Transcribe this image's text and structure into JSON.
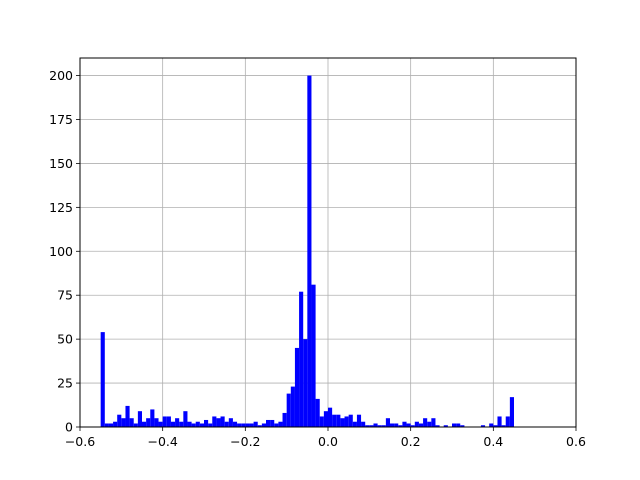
{
  "chart_data": {
    "type": "bar",
    "title": "",
    "xlabel": "",
    "ylabel": "",
    "xlim": [
      -0.6,
      0.6
    ],
    "ylim": [
      0,
      210
    ],
    "grid": true,
    "bar_color": "#0000ff",
    "x_ticks": [
      {
        "value": -0.6,
        "label": "−0.6"
      },
      {
        "value": -0.4,
        "label": "−0.4"
      },
      {
        "value": -0.2,
        "label": "−0.2"
      },
      {
        "value": 0.0,
        "label": "0.0"
      },
      {
        "value": 0.2,
        "label": "0.2"
      },
      {
        "value": 0.4,
        "label": "0.4"
      },
      {
        "value": 0.6,
        "label": "0.6"
      }
    ],
    "y_ticks": [
      {
        "value": 0,
        "label": "0"
      },
      {
        "value": 25,
        "label": "25"
      },
      {
        "value": 50,
        "label": "50"
      },
      {
        "value": 75,
        "label": "75"
      },
      {
        "value": 100,
        "label": "100"
      },
      {
        "value": 125,
        "label": "125"
      },
      {
        "value": 150,
        "label": "150"
      },
      {
        "value": 175,
        "label": "175"
      },
      {
        "value": 200,
        "label": "200"
      }
    ],
    "bin_start": -0.55,
    "bin_width": 0.01,
    "counts": [
      54,
      2,
      2,
      3,
      7,
      5,
      12,
      5,
      2,
      9,
      3,
      5,
      10,
      5,
      3,
      6,
      6,
      3,
      5,
      3,
      9,
      3,
      2,
      3,
      2,
      4,
      2,
      6,
      5,
      6,
      3,
      5,
      3,
      2,
      2,
      2,
      2,
      3,
      1,
      2,
      4,
      4,
      2,
      3,
      8,
      19,
      23,
      45,
      77,
      50,
      200,
      81,
      16,
      6,
      9,
      11,
      7,
      7,
      5,
      6,
      7,
      3,
      7,
      3,
      1,
      1,
      2,
      1,
      1,
      5,
      2,
      2,
      1,
      3,
      2,
      1,
      3,
      2,
      5,
      3,
      5,
      1,
      0,
      1,
      0,
      2,
      2,
      1,
      0,
      0,
      0,
      0,
      1,
      0,
      2,
      1,
      6,
      1,
      6,
      17
    ]
  }
}
